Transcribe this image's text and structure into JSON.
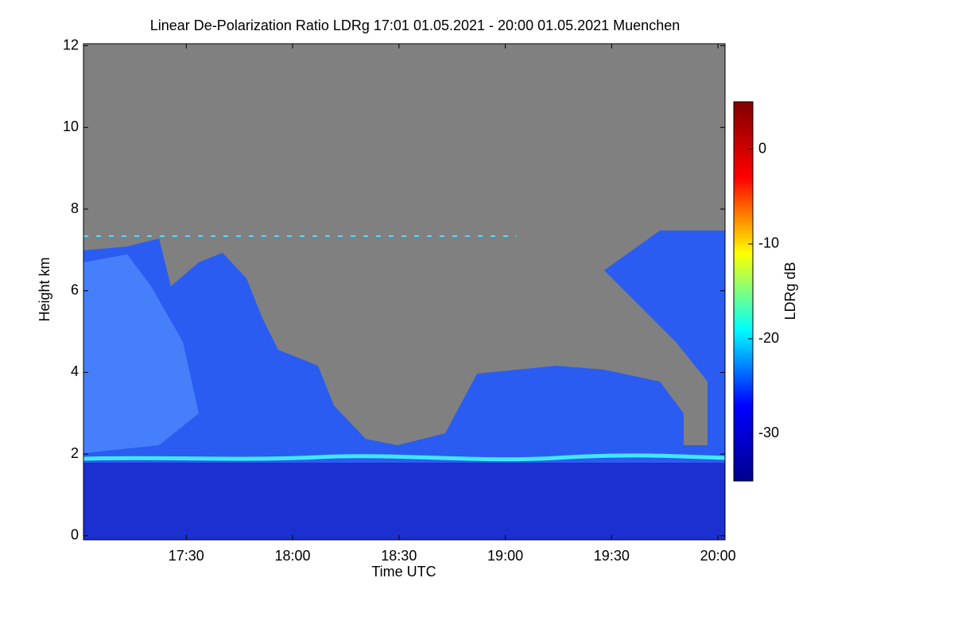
{
  "chart_data": {
    "type": "heatmap",
    "title": "Linear De-Polarization Ratio LDRg   17:01 01.05.2021 - 20:00 01.05.2021 Muenchen",
    "x_label": "Time UTC",
    "y_label": "Height km",
    "colorbar_label": "LDRg dB",
    "colormap": "jet",
    "xlim": [
      17.0167,
      20.0333
    ],
    "xticks": [
      {
        "value": 17.5,
        "label": "17:30"
      },
      {
        "value": 18,
        "label": "18:00"
      },
      {
        "value": 18.5,
        "label": "18:30"
      },
      {
        "value": 19,
        "label": "19:00"
      },
      {
        "value": 19.5,
        "label": "19:30"
      },
      {
        "value": 20,
        "label": "20:00"
      }
    ],
    "ylim": [
      -0.1,
      12.05
    ],
    "yticks": [
      0,
      2,
      4,
      6,
      8,
      10,
      12
    ],
    "clim": [
      -35,
      5
    ],
    "cticks": [
      0,
      -10,
      -20,
      -30
    ]
  }
}
